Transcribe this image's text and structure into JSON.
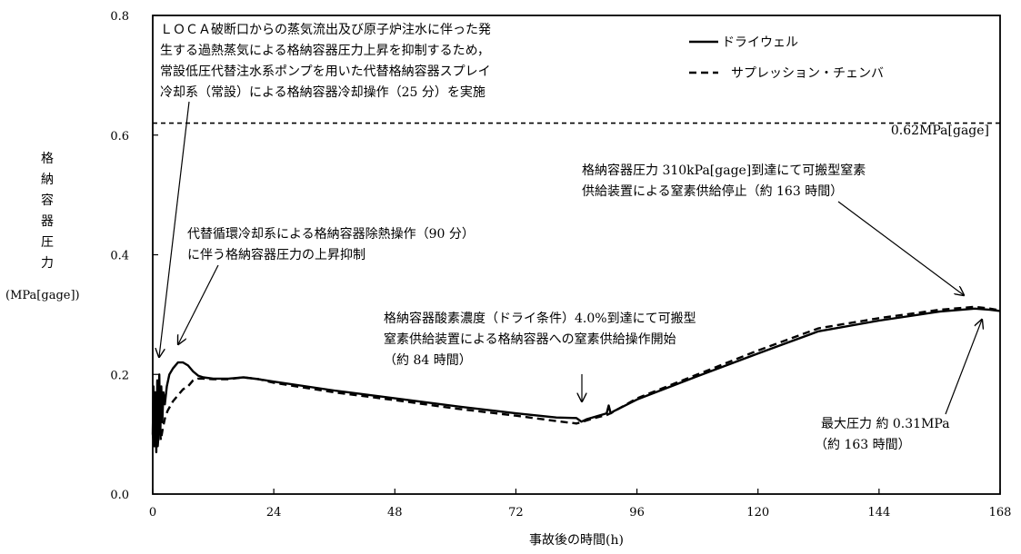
{
  "chart_data": {
    "type": "line",
    "xlabel": "事故後の時間(h)",
    "ylabel_chars": [
      "格",
      "納",
      "容",
      "器",
      "圧",
      "力"
    ],
    "ylabel_unit": "(MPa[gage])",
    "xlim": [
      0,
      168
    ],
    "ylim": [
      0,
      0.8
    ],
    "xticks": [
      0,
      24,
      48,
      72,
      96,
      120,
      144,
      168
    ],
    "yticks": [
      "0.0",
      "0.2",
      "0.4",
      "0.6",
      "0.8"
    ],
    "grid": false,
    "legend_position": "top-right",
    "series": [
      {
        "name": "ドライウェル",
        "style": "solid",
        "color": "#000000",
        "x": [
          0,
          0.15,
          0.3,
          0.5,
          0.7,
          0.9,
          1.1,
          1.3,
          1.5,
          1.7,
          1.9,
          2.1,
          2.4,
          2.8,
          3.3,
          4,
          5,
          6,
          7,
          8,
          9,
          10,
          12,
          15,
          18,
          21,
          24,
          36,
          48,
          60,
          72,
          80,
          84,
          85,
          86,
          88,
          90,
          90.4,
          90.8,
          91.3,
          96,
          108,
          120,
          132,
          144,
          156,
          163,
          166,
          168
        ],
        "y": [
          0.1,
          0.18,
          0.08,
          0.17,
          0.07,
          0.19,
          0.09,
          0.2,
          0.1,
          0.18,
          0.12,
          0.17,
          0.15,
          0.18,
          0.2,
          0.21,
          0.22,
          0.22,
          0.215,
          0.205,
          0.198,
          0.195,
          0.193,
          0.193,
          0.195,
          0.192,
          0.188,
          0.173,
          0.16,
          0.147,
          0.135,
          0.128,
          0.127,
          0.121,
          0.125,
          0.13,
          0.135,
          0.148,
          0.135,
          0.138,
          0.158,
          0.197,
          0.235,
          0.272,
          0.29,
          0.305,
          0.31,
          0.308,
          0.306
        ]
      },
      {
        "name": "サプレッション・チェンバ",
        "style": "dashed",
        "color": "#000000",
        "x": [
          0,
          0.3,
          0.6,
          1,
          1.3,
          1.6,
          2,
          2.5,
          3,
          4,
          5,
          6,
          7,
          8,
          9,
          10,
          12,
          15,
          18,
          21,
          24,
          36,
          48,
          60,
          72,
          80,
          84,
          85,
          86,
          88,
          90,
          91,
          96,
          108,
          120,
          132,
          144,
          156,
          163,
          166,
          168
        ],
        "y": [
          0.1,
          0.08,
          0.1,
          0.08,
          0.12,
          0.09,
          0.11,
          0.13,
          0.14,
          0.155,
          0.165,
          0.175,
          0.18,
          0.19,
          0.193,
          0.193,
          0.192,
          0.192,
          0.195,
          0.192,
          0.186,
          0.17,
          0.157,
          0.143,
          0.131,
          0.122,
          0.118,
          0.12,
          0.123,
          0.128,
          0.132,
          0.136,
          0.16,
          0.2,
          0.24,
          0.277,
          0.294,
          0.308,
          0.313,
          0.31,
          0.307
        ]
      }
    ],
    "reference_line": {
      "y": 0.62,
      "style": "dashed",
      "label": "0.62MPa[gage]"
    },
    "annotations": [
      {
        "lines": [
          "ＬＯＣＡ破断口からの蒸気流出及び原子炉注水に伴った発",
          "生する過熱蒸気による格納容器圧力上昇を抑制するため，",
          "常設低圧代替注水系ポンプを用いた代替格納容器スプレイ",
          "冷却系（常設）による格納容器冷却操作（25 分）を実施"
        ]
      },
      {
        "lines": [
          "代替循環冷却系による格納容器除熱操作（90 分）",
          "に伴う格納容器圧力の上昇抑制"
        ]
      },
      {
        "lines": [
          "格納容器酸素濃度（ドライ条件）4.0%到達にて可搬型",
          "窒素供給装置による格納容器への窒素供給操作開始",
          "（約 84 時間）"
        ]
      },
      {
        "lines": [
          "格納容器圧力 310kPa[gage]到達にて可搬型窒素",
          "供給装置による窒素供給停止（約 163 時間）"
        ]
      },
      {
        "lines": [
          "最大圧力 約 0.31MPa",
          "（約 163 時間）"
        ]
      }
    ]
  }
}
